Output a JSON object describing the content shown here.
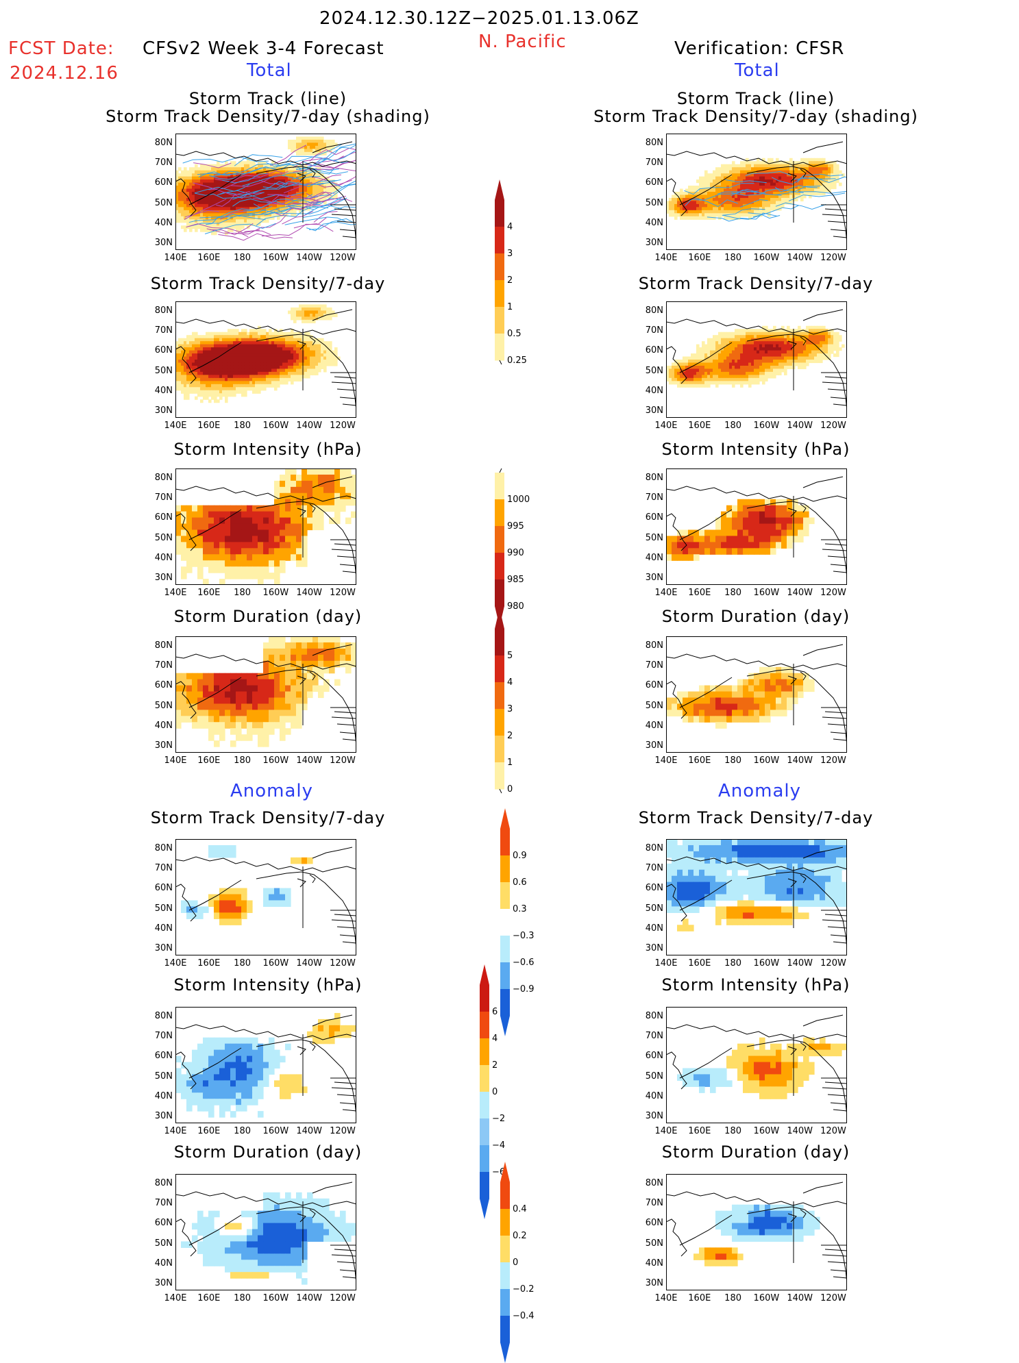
{
  "header": {
    "period": "2024.12.30.12Z−2025.01.13.06Z",
    "region": "N. Pacific",
    "fcst_label": "FCST Date:",
    "fcst_date": "2024.12.16",
    "model": "CFSv2 Week 3-4 Forecast",
    "verification": "Verification: CFSR",
    "left_section": "Total",
    "right_section": "Total",
    "left_anomaly": "Anomaly",
    "right_anomaly": "Anomaly"
  },
  "axes": {
    "lat": [
      "80N",
      "70N",
      "60N",
      "50N",
      "40N",
      "30N"
    ],
    "lon": [
      "140E",
      "160E",
      "180",
      "160W",
      "140W",
      "120W"
    ]
  },
  "titles": {
    "track1": "Storm Track (line)",
    "track2": "Storm Track Density/7-day (shading)",
    "density": "Storm Track Density/7-day",
    "intensity": "Storm Intensity (hPa)",
    "duration": "Storm Duration (day)"
  },
  "colorbars": {
    "density": {
      "labels": [
        "4",
        "3",
        "2",
        "1",
        "0.5",
        "0.25"
      ],
      "colors": [
        "#a51616",
        "#d72818",
        "#f06a10",
        "#ffa400",
        "#ffcd55",
        "#fff1a8"
      ]
    },
    "intensity": {
      "labels": [
        "1000",
        "995",
        "990",
        "985",
        "980"
      ],
      "colors": [
        "#fff1a8",
        "#ffa400",
        "#f06a10",
        "#d72818",
        "#a51616"
      ]
    },
    "duration": {
      "labels": [
        "5",
        "4",
        "3",
        "2",
        "1",
        "0"
      ],
      "colors": [
        "#a51616",
        "#d72818",
        "#f06a10",
        "#ffa400",
        "#ffcd55",
        "#fff1a8"
      ]
    },
    "anom_density": {
      "labels": [
        "0.9",
        "0.6",
        "0.3",
        "−0.3",
        "−0.6",
        "−0.9"
      ],
      "colors": [
        "#f04a10",
        "#ffa400",
        "#ffdd66",
        "#ffffff",
        "#b8ecfb",
        "#5aaaf0",
        "#1a60d8"
      ]
    },
    "anom_intensity": {
      "labels": [
        "6",
        "4",
        "2",
        "0",
        "−2",
        "−4",
        "−6"
      ],
      "colors": [
        "#cc1a12",
        "#f04a10",
        "#ffa400",
        "#ffdd66",
        "#b8ecfb",
        "#8cc8f5",
        "#5aaaf0",
        "#1a60d8"
      ]
    },
    "anom_duration": {
      "labels": [
        "0.4",
        "0.2",
        "0",
        "−0.2",
        "−0.4"
      ],
      "colors": [
        "#f04a10",
        "#ffa400",
        "#ffdd66",
        "#b8ecfb",
        "#5aaaf0",
        "#1a60d8"
      ]
    }
  }
}
